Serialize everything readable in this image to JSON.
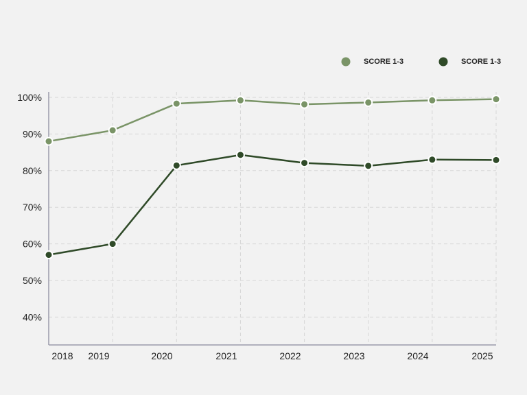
{
  "chart_data": {
    "type": "line",
    "title": "",
    "xlabel": "",
    "ylabel": "",
    "categories": [
      "2018",
      "2019",
      "2020",
      "2021",
      "2022",
      "2023",
      "2024",
      "2025"
    ],
    "series": [
      {
        "name": "SCORE 1-3",
        "color": "#7a9467",
        "values": [
          88,
          91,
          98.3,
          99.2,
          98.1,
          98.6,
          99.2,
          99.5
        ]
      },
      {
        "name": "SCORE 1-3",
        "color": "#2f4a28",
        "values": [
          57,
          60,
          81.4,
          84.3,
          82.1,
          81.3,
          83,
          82.9
        ]
      }
    ],
    "yticks": [
      "100%",
      "90%",
      "80%",
      "70%",
      "60%",
      "50%",
      "40%"
    ],
    "ytick_values": [
      100,
      90,
      80,
      70,
      60,
      50,
      40
    ],
    "ylim": [
      32,
      100
    ],
    "grid": true,
    "legend_position": "top-right"
  }
}
